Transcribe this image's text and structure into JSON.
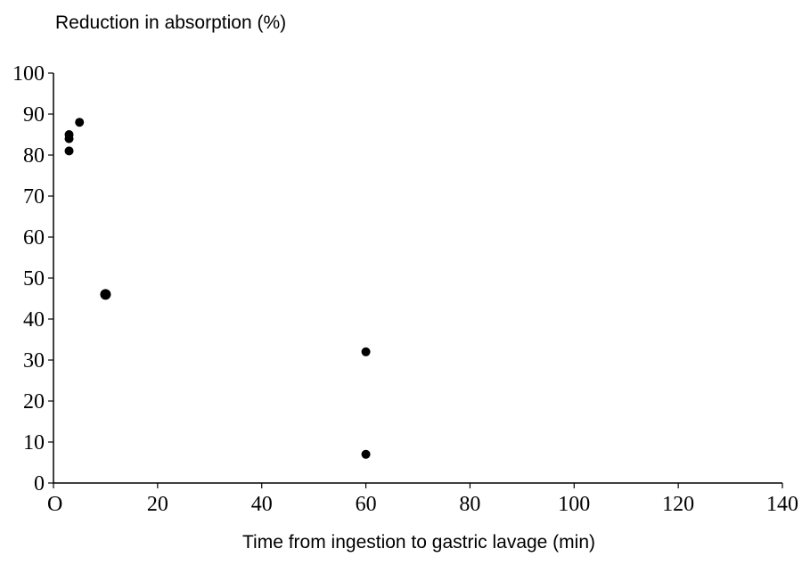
{
  "chart_data": {
    "type": "scatter",
    "ylabel": "Reduction in absorption (%)",
    "xlabel": "Time from ingestion to gastric lavage (min)",
    "xlim": [
      0,
      140
    ],
    "ylim": [
      0,
      100
    ],
    "x_ticks": [
      {
        "value": 0,
        "label": "O"
      },
      {
        "value": 20,
        "label": "20"
      },
      {
        "value": 40,
        "label": "40"
      },
      {
        "value": 60,
        "label": "60"
      },
      {
        "value": 80,
        "label": "80"
      },
      {
        "value": 100,
        "label": "100"
      },
      {
        "value": 120,
        "label": "120"
      },
      {
        "value": 140,
        "label": "140"
      }
    ],
    "y_ticks": [
      {
        "value": 0,
        "label": "0"
      },
      {
        "value": 10,
        "label": "10"
      },
      {
        "value": 20,
        "label": "20"
      },
      {
        "value": 30,
        "label": "30"
      },
      {
        "value": 40,
        "label": "40"
      },
      {
        "value": 50,
        "label": "50"
      },
      {
        "value": 60,
        "label": "60"
      },
      {
        "value": 70,
        "label": "70"
      },
      {
        "value": 80,
        "label": "80"
      },
      {
        "value": 90,
        "label": "90"
      },
      {
        "value": 100,
        "label": "100"
      }
    ],
    "points": [
      {
        "x": 3,
        "y": 84
      },
      {
        "x": 3,
        "y": 85
      },
      {
        "x": 3,
        "y": 81
      },
      {
        "x": 5,
        "y": 88
      },
      {
        "x": 10,
        "y": 46
      },
      {
        "x": 60,
        "y": 32
      },
      {
        "x": 60,
        "y": 7
      }
    ],
    "grid": false,
    "legend": "none"
  }
}
